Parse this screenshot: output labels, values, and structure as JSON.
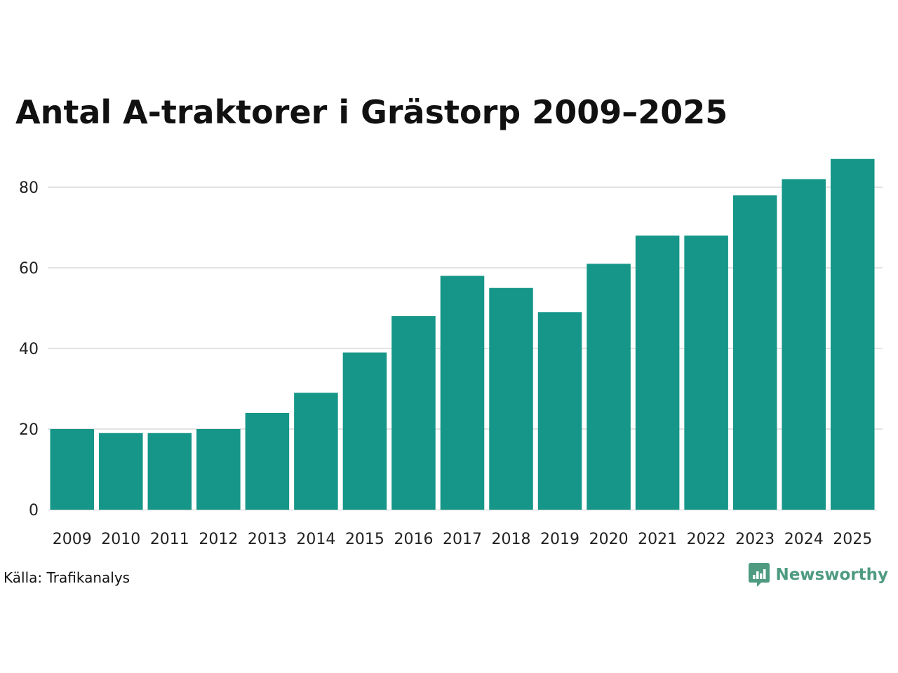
{
  "chart_title": "Antal A-traktorer i Grästorp 2009–2025",
  "source": "Källa: Trafikanalys",
  "brand": {
    "name": "Newsworthy",
    "color": "#4e9b82",
    "icon": "newsworthy-logo-icon"
  },
  "colors": {
    "bar": "#159688",
    "grid": "#e3e3e3",
    "axis": "#cfcfcf"
  },
  "chart_data": {
    "type": "bar",
    "title": "Antal A-traktorer i Grästorp 2009–2025",
    "xlabel": "",
    "ylabel": "",
    "categories": [
      "2009",
      "2010",
      "2011",
      "2012",
      "2013",
      "2014",
      "2015",
      "2016",
      "2017",
      "2018",
      "2019",
      "2020",
      "2021",
      "2022",
      "2023",
      "2024",
      "2025"
    ],
    "values": [
      20,
      19,
      19,
      20,
      24,
      29,
      39,
      48,
      58,
      55,
      49,
      61,
      68,
      68,
      78,
      82,
      87
    ],
    "ylim": [
      0,
      90
    ],
    "yticks": [
      0,
      20,
      40,
      60,
      80
    ],
    "grid": true,
    "legend": "none"
  }
}
